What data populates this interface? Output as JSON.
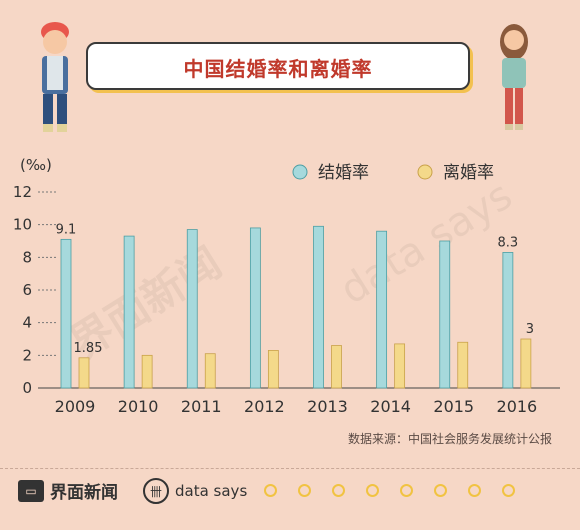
{
  "title": "中国结婚率和离婚率",
  "source": "数据来源：中国社会服务发展统计公报",
  "footer": {
    "brand_jiemian": "界面新闻",
    "brand_datasays": "data says"
  },
  "watermark": {
    "left": "界面新闻",
    "right": "data says"
  },
  "colors": {
    "marriage": "#a6d9dc",
    "divorce": "#f4d98a",
    "marriage_stroke": "#4d9ea3",
    "divorce_stroke": "#c9a14a"
  },
  "chart_data": {
    "type": "bar",
    "unit_label": "(‰)",
    "categories": [
      "2009",
      "2010",
      "2011",
      "2012",
      "2013",
      "2014",
      "2015",
      "2016"
    ],
    "series": [
      {
        "name": "结婚率",
        "values": [
          9.1,
          9.3,
          9.7,
          9.8,
          9.9,
          9.6,
          9.0,
          8.3
        ]
      },
      {
        "name": "离婚率",
        "values": [
          1.85,
          2.0,
          2.1,
          2.3,
          2.6,
          2.7,
          2.8,
          3.0
        ]
      }
    ],
    "data_labels": [
      {
        "series": 0,
        "index": 0,
        "text": "9.1"
      },
      {
        "series": 1,
        "index": 0,
        "text": "1.85"
      },
      {
        "series": 0,
        "index": 7,
        "text": "8.3"
      },
      {
        "series": 1,
        "index": 7,
        "text": "3"
      }
    ],
    "ylim": [
      0,
      12
    ],
    "yticks": [
      0,
      2,
      4,
      6,
      8,
      10,
      12
    ],
    "legend_position": "top-right"
  }
}
